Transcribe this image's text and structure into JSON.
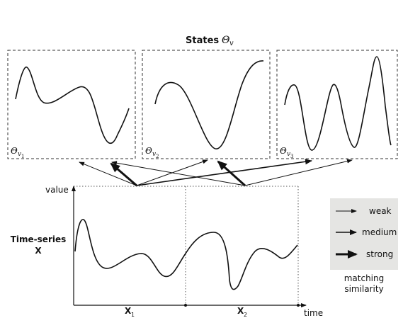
{
  "states": {
    "title_bold": "States",
    "title_symbol": "Θ",
    "title_subscript": "v",
    "panels": [
      {
        "symbol": "Θ",
        "sub": "v",
        "subsub": "1"
      },
      {
        "symbol": "Θ",
        "sub": "v",
        "subsub": "2"
      },
      {
        "symbol": "Θ",
        "sub": "v",
        "subsub": "3"
      }
    ]
  },
  "timeseries": {
    "label_line1": "Time-series",
    "label_line2": "X",
    "y_axis_label": "value",
    "x_axis_label": "time",
    "segments": [
      {
        "symbol": "X",
        "sub": "1"
      },
      {
        "symbol": "X",
        "sub": "2"
      }
    ]
  },
  "legend": {
    "items": [
      {
        "label": "weak",
        "strength": "weak"
      },
      {
        "label": "medium",
        "strength": "medium"
      },
      {
        "label": "strong",
        "strength": "strong"
      }
    ],
    "caption_line1": "matching",
    "caption_line2": "similarity",
    "background": "#e5e5e3"
  },
  "colors": {
    "ink": "#111111",
    "dashed": "#333333"
  }
}
